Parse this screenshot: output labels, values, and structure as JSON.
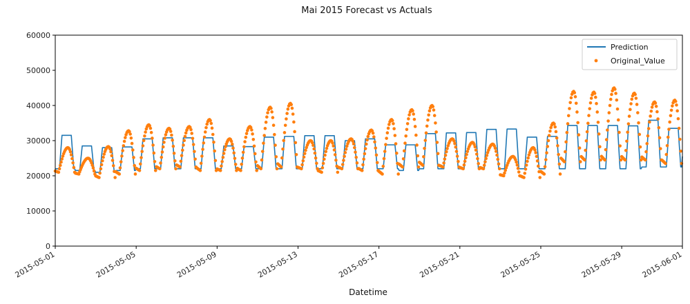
{
  "chart_data": {
    "type": "line",
    "title": "Mai 2015 Forecast vs Actuals",
    "xlabel": "Datetime",
    "ylabel": "",
    "xlim": [
      "2015-05-01",
      "2015-06-01"
    ],
    "ylim": [
      0,
      60000
    ],
    "yticks": [
      0,
      10000,
      20000,
      30000,
      40000,
      50000,
      60000
    ],
    "xticks": [
      "2015-05-01",
      "2015-05-05",
      "2015-05-09",
      "2015-05-13",
      "2015-05-17",
      "2015-05-21",
      "2015-05-25",
      "2015-05-29",
      "2015-06-01"
    ],
    "grid": false,
    "legend_position": "top-right",
    "colors": {
      "prediction": "#1f77b4",
      "original": "#ff7f0e"
    },
    "dates": [
      "2015-05-01",
      "2015-05-02",
      "2015-05-03",
      "2015-05-04",
      "2015-05-05",
      "2015-05-06",
      "2015-05-07",
      "2015-05-08",
      "2015-05-09",
      "2015-05-10",
      "2015-05-11",
      "2015-05-12",
      "2015-05-13",
      "2015-05-14",
      "2015-05-15",
      "2015-05-16",
      "2015-05-17",
      "2015-05-18",
      "2015-05-19",
      "2015-05-20",
      "2015-05-21",
      "2015-05-22",
      "2015-05-23",
      "2015-05-24",
      "2015-05-25",
      "2015-05-26",
      "2015-05-27",
      "2015-05-28",
      "2015-05-29",
      "2015-05-30",
      "2015-05-31"
    ],
    "series": [
      {
        "name": "Prediction",
        "style": "line",
        "daily_min": [
          22000,
          21500,
          21000,
          21500,
          22000,
          22000,
          22000,
          22000,
          22000,
          22000,
          22000,
          22000,
          22000,
          22000,
          22000,
          22000,
          22000,
          21500,
          22000,
          22000,
          22000,
          22000,
          22000,
          22000,
          22000,
          22000,
          22000,
          22000,
          22000,
          22500,
          22500
        ],
        "daily_max": [
          31500,
          28500,
          28000,
          28200,
          30500,
          30800,
          30800,
          30800,
          28500,
          28300,
          31000,
          31200,
          31400,
          31400,
          30000,
          30500,
          28800,
          28800,
          32000,
          32200,
          32300,
          33200,
          33300,
          31000,
          31200,
          34300,
          34300,
          34300,
          34200,
          35800,
          33500
        ]
      },
      {
        "name": "Original_Value",
        "style": "dots",
        "daily_min": [
          21000,
          20500,
          19500,
          20500,
          21500,
          22000,
          22500,
          21500,
          21500,
          21500,
          22000,
          22500,
          22000,
          21000,
          22000,
          21500,
          20500,
          22500,
          23000,
          22500,
          22000,
          22000,
          20000,
          19500,
          20500,
          24000,
          24500,
          24500,
          24500,
          24500,
          23500
        ],
        "daily_max": [
          28000,
          25000,
          28300,
          32800,
          34500,
          33500,
          34000,
          36000,
          30500,
          34000,
          39500,
          40600,
          30000,
          30000,
          30500,
          33000,
          36000,
          38800,
          40000,
          30500,
          29500,
          29000,
          25500,
          28000,
          35000,
          44000,
          43800,
          45000,
          43500,
          41000,
          41500
        ]
      }
    ]
  }
}
